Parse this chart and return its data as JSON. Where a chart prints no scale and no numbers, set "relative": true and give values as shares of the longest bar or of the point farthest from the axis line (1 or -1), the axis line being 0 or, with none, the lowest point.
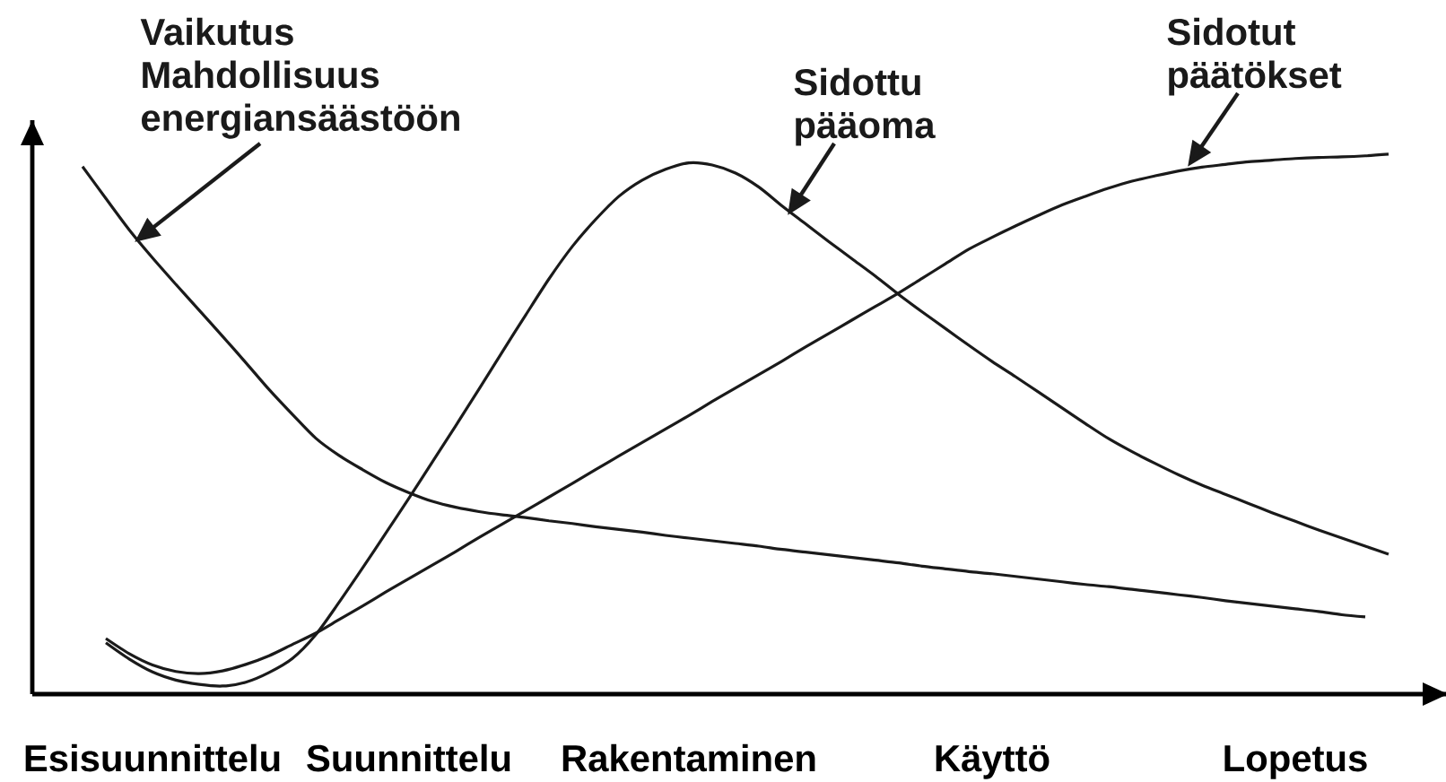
{
  "chart_data": {
    "type": "line",
    "relative": true,
    "categories": [
      null,
      null,
      null,
      "Esisuunnittelu",
      null,
      null,
      null,
      null,
      null,
      null,
      null,
      null,
      null,
      null,
      "Suunnittelu",
      null,
      null,
      null,
      null,
      null,
      null,
      null,
      null,
      null,
      null,
      null,
      "Rakentaminen",
      null,
      null,
      null,
      null,
      null,
      null,
      null,
      null,
      null,
      null,
      null,
      null,
      "Käyttö",
      null,
      null,
      null,
      null,
      null,
      null,
      null,
      null,
      null,
      null,
      null,
      null,
      "Lopetus",
      null,
      null,
      null,
      null
    ],
    "series": [
      {
        "name": "Vaikutus Mahdollisuus energiansäästöön",
        "color": "#1a1a1a",
        "values": [
          0.977,
          0.918,
          0.86,
          0.808,
          0.759,
          0.711,
          0.663,
          0.614,
          0.564,
          0.518,
          0.474,
          0.442,
          0.416,
          0.392,
          0.373,
          0.357,
          0.346,
          0.338,
          0.332,
          0.327,
          0.321,
          0.316,
          0.31,
          0.305,
          0.3,
          0.294,
          0.289,
          0.284,
          0.279,
          0.274,
          0.268,
          0.263,
          0.258,
          0.253,
          0.248,
          0.243,
          0.237,
          0.232,
          0.227,
          0.223,
          0.218,
          0.213,
          0.208,
          0.203,
          0.199,
          0.194,
          0.189,
          0.184,
          0.179,
          0.173,
          0.168,
          0.163,
          0.158,
          0.153,
          0.147,
          0.143,
          null
        ]
      },
      {
        "name": "Sidottu pääoma",
        "color": "#1a1a1a",
        "values": [
          null,
          0.095,
          0.065,
          0.041,
          0.026,
          0.018,
          0.015,
          0.022,
          0.04,
          0.066,
          0.11,
          0.17,
          0.233,
          0.298,
          0.363,
          0.43,
          0.497,
          0.565,
          0.634,
          0.702,
          0.769,
          0.829,
          0.879,
          0.922,
          0.952,
          0.972,
          0.984,
          0.98,
          0.965,
          0.939,
          0.904,
          0.871,
          0.838,
          0.806,
          0.774,
          0.74,
          0.708,
          0.677,
          0.646,
          0.616,
          0.588,
          0.559,
          0.53,
          0.501,
          0.473,
          0.449,
          0.427,
          0.406,
          0.387,
          0.37,
          0.353,
          0.336,
          0.32,
          0.304,
          0.289,
          0.274,
          0.259
        ]
      },
      {
        "name": "Sidotut päätökset",
        "color": "#1a1a1a",
        "values": [
          null,
          0.103,
          0.075,
          0.054,
          0.042,
          0.038,
          0.043,
          0.055,
          0.071,
          0.092,
          0.113,
          0.138,
          0.163,
          0.189,
          0.214,
          0.239,
          0.264,
          0.29,
          0.315,
          0.34,
          0.365,
          0.39,
          0.416,
          0.441,
          0.466,
          0.491,
          0.516,
          0.542,
          0.567,
          0.592,
          0.617,
          0.643,
          0.668,
          0.693,
          0.718,
          0.743,
          0.77,
          0.797,
          0.824,
          0.846,
          0.867,
          0.887,
          0.906,
          0.922,
          0.937,
          0.95,
          0.96,
          0.969,
          0.976,
          0.981,
          0.986,
          0.989,
          0.992,
          0.994,
          0.995,
          0.997,
          1.0
        ]
      }
    ]
  }
}
